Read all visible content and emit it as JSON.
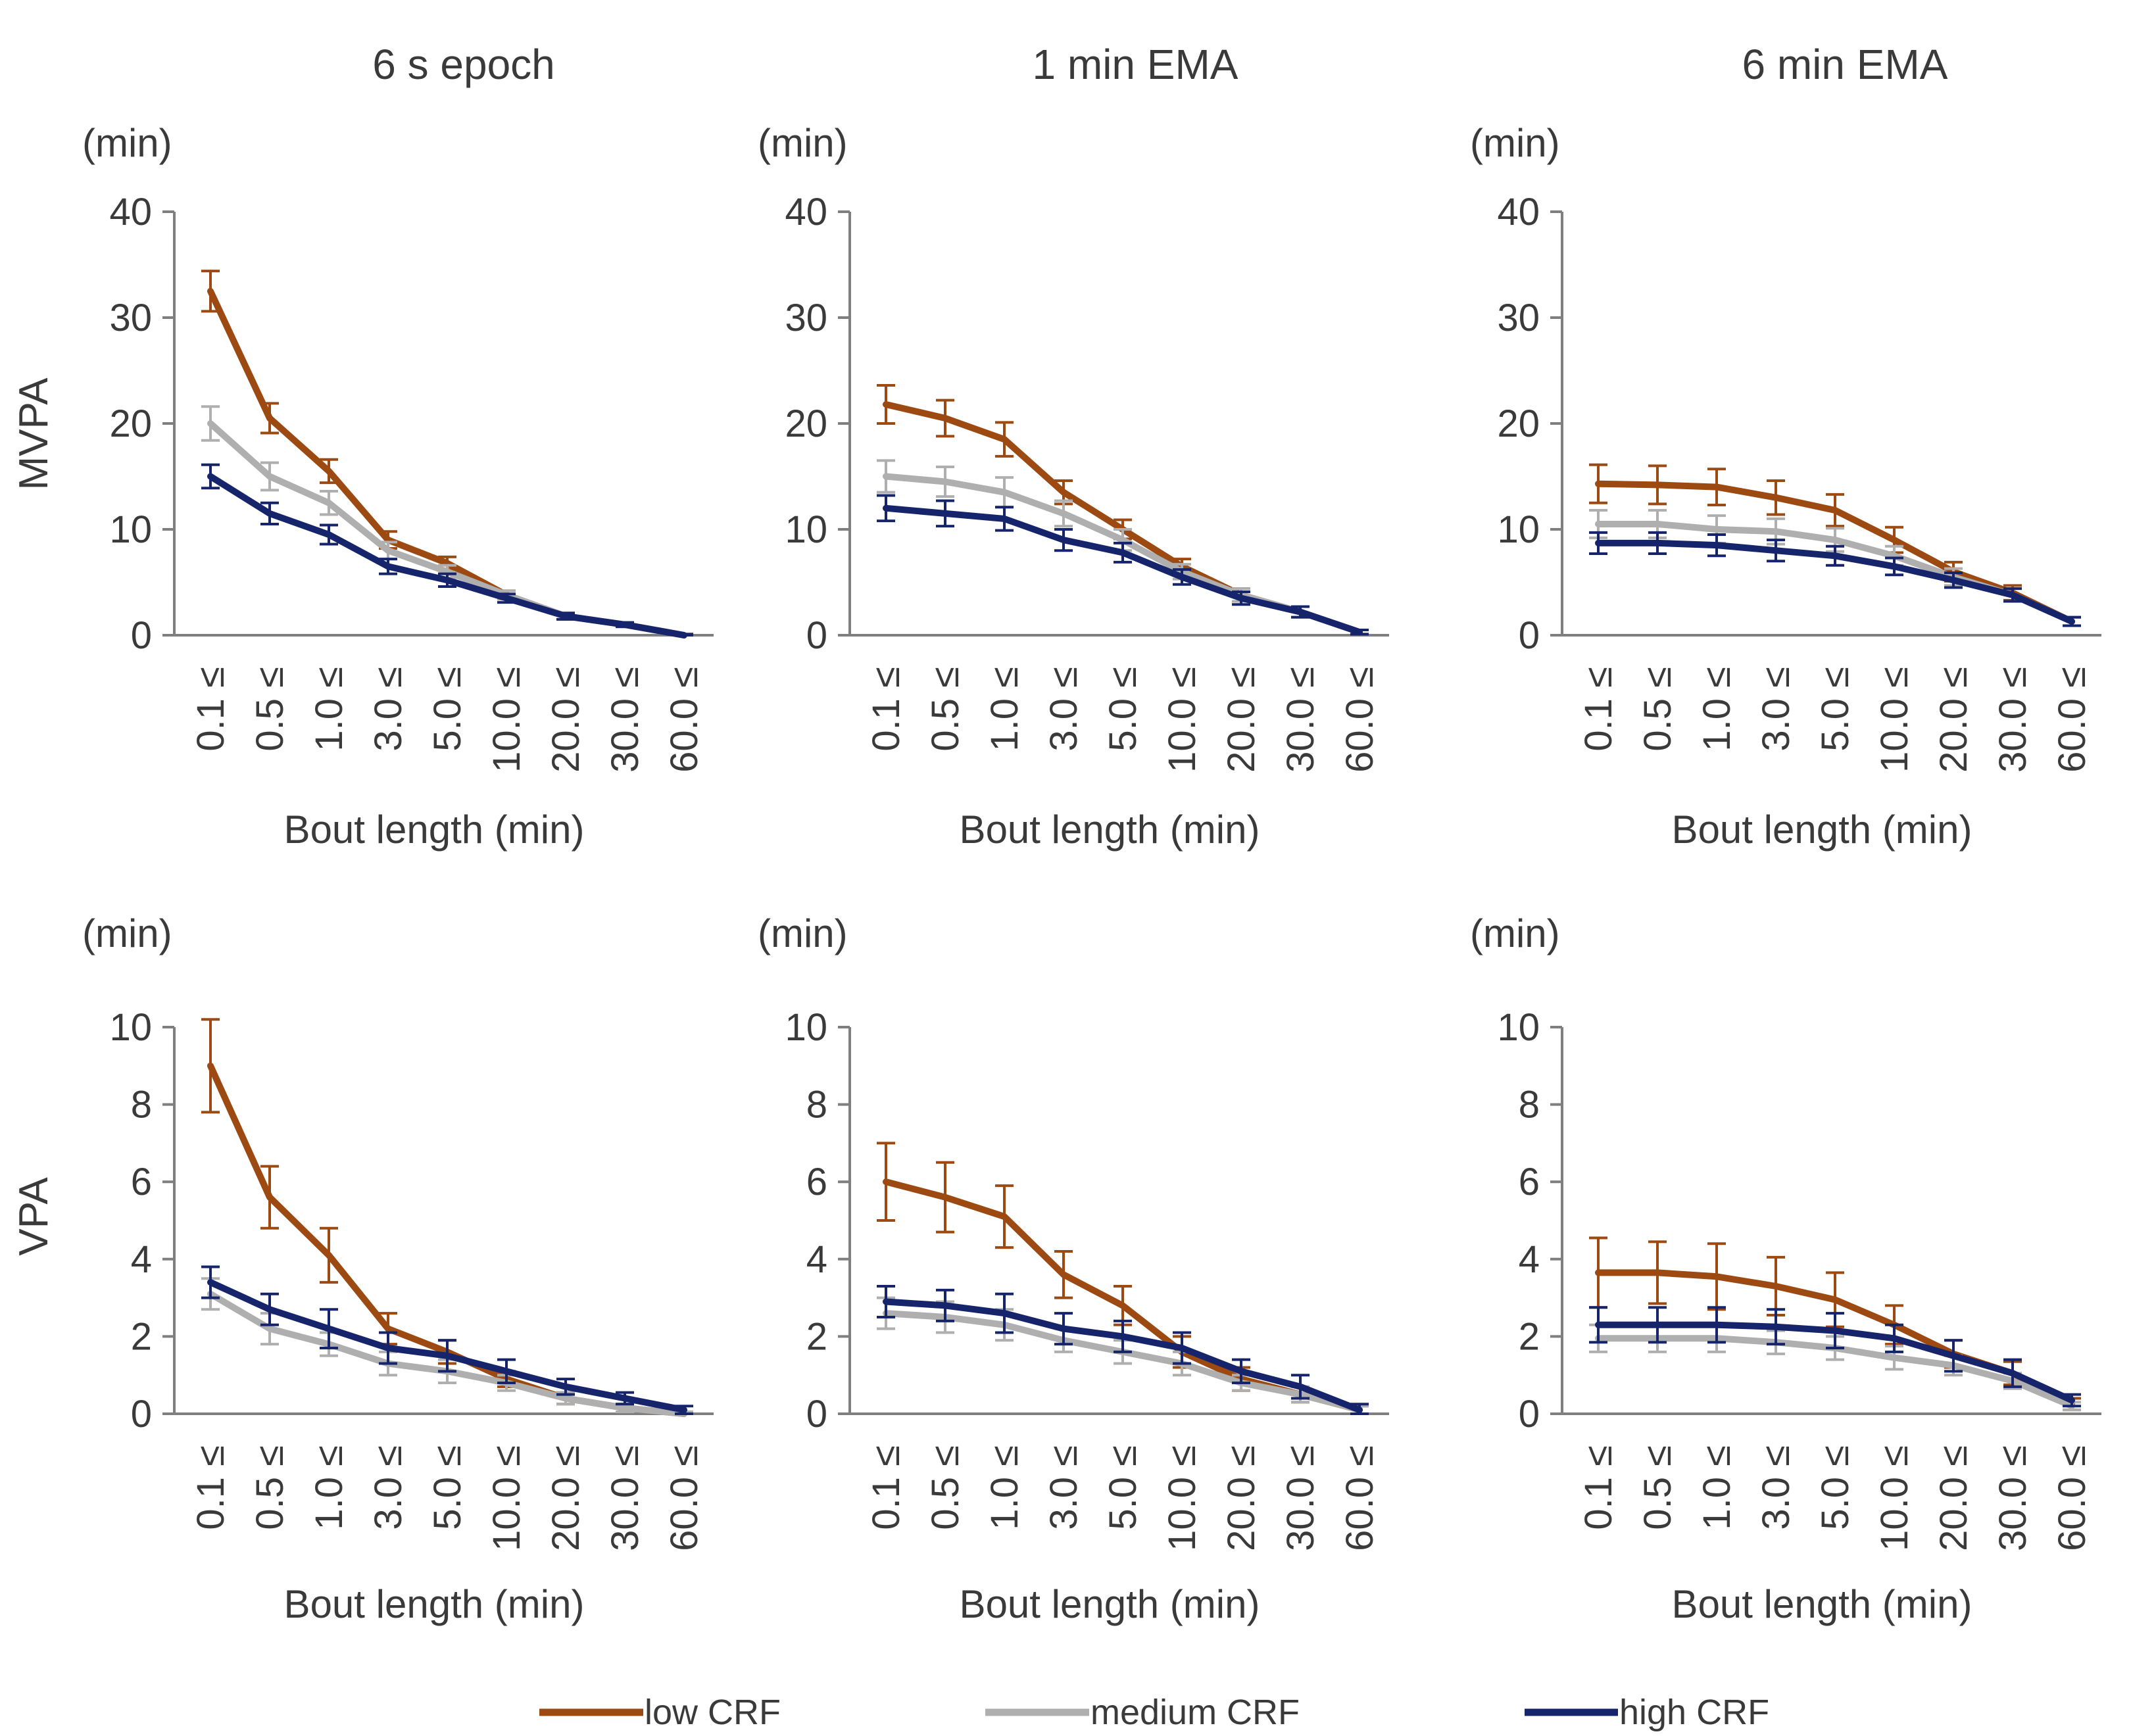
{
  "legend": [
    {
      "key": "low",
      "label": "low CRF",
      "color": "#9C4A12"
    },
    {
      "key": "medium",
      "label": "medium CRF",
      "color": "#AFAFAF"
    },
    {
      "key": "high",
      "label": "high CRF",
      "color": "#16256B"
    }
  ],
  "columns": [
    "6 s epoch",
    "1 min EMA",
    "6 min EMA"
  ],
  "rows": [
    {
      "label": "MVPA",
      "unit": "(min)",
      "ylim": [
        0,
        40
      ],
      "yticks": [
        "0",
        "10",
        "20",
        "30",
        "40"
      ]
    },
    {
      "label": "VPA",
      "unit": "(min)",
      "ylim": [
        0,
        10
      ],
      "yticks": [
        "0",
        "2",
        "4",
        "6",
        "8",
        "10"
      ]
    }
  ],
  "chart_data": [
    {
      "type": "line",
      "title": "6 s epoch",
      "ylabel": "MVPA",
      "unit": "(min)",
      "xlabel": "Bout length (min)",
      "ylim": [
        0,
        40
      ],
      "categories": [
        "0.1 ≤",
        "0.5 ≤",
        "1.0 ≤",
        "3.0 ≤",
        "5.0 ≤",
        "10.0 ≤",
        "20.0 ≤",
        "30.0 ≤",
        "60.0 ≤"
      ],
      "series": [
        {
          "name": "low CRF",
          "values": [
            32.5,
            20.5,
            15.5,
            9.0,
            6.8,
            3.8,
            1.8,
            1.0,
            0.0
          ],
          "errors": [
            1.9,
            1.4,
            1.1,
            0.8,
            0.6,
            0.4,
            0.3,
            0.2,
            0.1
          ]
        },
        {
          "name": "medium CRF",
          "values": [
            20.0,
            15.0,
            12.5,
            8.0,
            6.0,
            3.8,
            1.8,
            1.0,
            0.0
          ],
          "errors": [
            1.6,
            1.3,
            1.1,
            0.8,
            0.6,
            0.4,
            0.3,
            0.2,
            0.1
          ]
        },
        {
          "name": "high CRF",
          "values": [
            15.0,
            11.5,
            9.5,
            6.5,
            5.2,
            3.5,
            1.8,
            1.0,
            0.0
          ],
          "errors": [
            1.1,
            1.0,
            0.9,
            0.7,
            0.6,
            0.4,
            0.3,
            0.2,
            0.1
          ]
        }
      ]
    },
    {
      "type": "line",
      "title": "1 min EMA",
      "ylabel": "MVPA",
      "unit": "(min)",
      "xlabel": "Bout length (min)",
      "ylim": [
        0,
        40
      ],
      "categories": [
        "0.1 ≤",
        "0.5 ≤",
        "1.0 ≤",
        "3.0 ≤",
        "5.0 ≤",
        "10.0 ≤",
        "20.0 ≤",
        "30.0 ≤",
        "60.0 ≤"
      ],
      "series": [
        {
          "name": "low CRF",
          "values": [
            21.8,
            20.5,
            18.5,
            13.5,
            10.0,
            6.5,
            3.8,
            2.2,
            0.3
          ],
          "errors": [
            1.8,
            1.7,
            1.6,
            1.1,
            0.9,
            0.7,
            0.6,
            0.5,
            0.2
          ]
        },
        {
          "name": "medium CRF",
          "values": [
            15.0,
            14.5,
            13.5,
            11.5,
            9.0,
            6.0,
            3.8,
            2.2,
            0.3
          ],
          "errors": [
            1.5,
            1.4,
            1.4,
            1.2,
            1.0,
            0.7,
            0.6,
            0.5,
            0.2
          ]
        },
        {
          "name": "high CRF",
          "values": [
            12.0,
            11.5,
            11.0,
            9.0,
            7.8,
            5.5,
            3.5,
            2.2,
            0.3
          ],
          "errors": [
            1.2,
            1.2,
            1.1,
            1.0,
            0.9,
            0.7,
            0.6,
            0.5,
            0.2
          ]
        }
      ]
    },
    {
      "type": "line",
      "title": "6 min EMA",
      "ylabel": "MVPA",
      "unit": "(min)",
      "xlabel": "Bout length (min)",
      "ylim": [
        0,
        40
      ],
      "categories": [
        "0.1 ≤",
        "0.5 ≤",
        "1.0 ≤",
        "3.0 ≤",
        "5.0 ≤",
        "10.0 ≤",
        "20.0 ≤",
        "30.0 ≤",
        "60.0 ≤"
      ],
      "series": [
        {
          "name": "low CRF",
          "values": [
            14.3,
            14.2,
            14.0,
            13.0,
            11.8,
            9.0,
            6.0,
            4.0,
            1.3
          ],
          "errors": [
            1.8,
            1.8,
            1.7,
            1.6,
            1.5,
            1.2,
            0.9,
            0.7,
            0.4
          ]
        },
        {
          "name": "medium CRF",
          "values": [
            10.5,
            10.5,
            10.0,
            9.8,
            9.0,
            7.5,
            5.5,
            3.8,
            1.3
          ],
          "errors": [
            1.3,
            1.3,
            1.3,
            1.2,
            1.1,
            0.9,
            0.8,
            0.6,
            0.4
          ]
        },
        {
          "name": "high CRF",
          "values": [
            8.7,
            8.7,
            8.5,
            8.0,
            7.5,
            6.5,
            5.2,
            3.8,
            1.3
          ],
          "errors": [
            1.0,
            1.0,
            1.0,
            1.0,
            0.9,
            0.8,
            0.7,
            0.6,
            0.4
          ]
        }
      ]
    },
    {
      "type": "line",
      "title": "6 s epoch",
      "ylabel": "VPA",
      "unit": "(min)",
      "xlabel": "Bout length (min)",
      "ylim": [
        0,
        10
      ],
      "categories": [
        "0.1 ≤",
        "0.5 ≤",
        "1.0 ≤",
        "3.0 ≤",
        "5.0 ≤",
        "10.0 ≤",
        "20.0 ≤",
        "30.0 ≤",
        "60.0 ≤"
      ],
      "series": [
        {
          "name": "low CRF",
          "values": [
            9.0,
            5.6,
            4.1,
            2.2,
            1.6,
            0.9,
            0.4,
            0.15,
            0.0
          ],
          "errors": [
            1.2,
            0.8,
            0.7,
            0.4,
            0.3,
            0.2,
            0.15,
            0.1,
            0.05
          ]
        },
        {
          "name": "medium CRF",
          "values": [
            3.1,
            2.2,
            1.8,
            1.3,
            1.1,
            0.8,
            0.4,
            0.15,
            0.0
          ],
          "errors": [
            0.4,
            0.4,
            0.3,
            0.3,
            0.3,
            0.2,
            0.15,
            0.1,
            0.05
          ]
        },
        {
          "name": "high CRF",
          "values": [
            3.4,
            2.7,
            2.2,
            1.7,
            1.5,
            1.1,
            0.7,
            0.4,
            0.1
          ],
          "errors": [
            0.4,
            0.4,
            0.5,
            0.4,
            0.4,
            0.3,
            0.2,
            0.15,
            0.1
          ]
        }
      ]
    },
    {
      "type": "line",
      "title": "1 min EMA",
      "ylabel": "VPA",
      "unit": "(min)",
      "xlabel": "Bout length (min)",
      "ylim": [
        0,
        10
      ],
      "categories": [
        "0.1 ≤",
        "0.5 ≤",
        "1.0 ≤",
        "3.0 ≤",
        "5.0 ≤",
        "10.0 ≤",
        "20.0 ≤",
        "30.0 ≤",
        "60.0 ≤"
      ],
      "series": [
        {
          "name": "low CRF",
          "values": [
            6.0,
            5.6,
            5.1,
            3.6,
            2.8,
            1.6,
            0.9,
            0.5,
            0.1
          ],
          "errors": [
            1.0,
            0.9,
            0.8,
            0.6,
            0.5,
            0.4,
            0.3,
            0.2,
            0.1
          ]
        },
        {
          "name": "medium CRF",
          "values": [
            2.6,
            2.5,
            2.3,
            1.9,
            1.6,
            1.3,
            0.8,
            0.5,
            0.1
          ],
          "errors": [
            0.4,
            0.4,
            0.4,
            0.3,
            0.3,
            0.3,
            0.2,
            0.2,
            0.1
          ]
        },
        {
          "name": "high CRF",
          "values": [
            2.9,
            2.8,
            2.6,
            2.2,
            2.0,
            1.7,
            1.1,
            0.7,
            0.1
          ],
          "errors": [
            0.4,
            0.4,
            0.5,
            0.4,
            0.4,
            0.4,
            0.3,
            0.3,
            0.15
          ]
        }
      ]
    },
    {
      "type": "line",
      "title": "6 min EMA",
      "ylabel": "VPA",
      "unit": "(min)",
      "xlabel": "Bout length (min)",
      "ylim": [
        0,
        10
      ],
      "categories": [
        "0.1 ≤",
        "0.5 ≤",
        "1.0 ≤",
        "3.0 ≤",
        "5.0 ≤",
        "10.0 ≤",
        "20.0 ≤",
        "30.0 ≤",
        "60.0 ≤"
      ],
      "series": [
        {
          "name": "low CRF",
          "values": [
            3.65,
            3.65,
            3.55,
            3.3,
            2.95,
            2.3,
            1.55,
            1.05,
            0.25
          ],
          "errors": [
            0.9,
            0.8,
            0.85,
            0.75,
            0.7,
            0.5,
            0.35,
            0.3,
            0.15
          ]
        },
        {
          "name": "medium CRF",
          "values": [
            1.95,
            1.95,
            1.95,
            1.85,
            1.7,
            1.45,
            1.25,
            0.85,
            0.2
          ],
          "errors": [
            0.35,
            0.35,
            0.35,
            0.3,
            0.3,
            0.3,
            0.25,
            0.2,
            0.1
          ]
        },
        {
          "name": "high CRF",
          "values": [
            2.3,
            2.3,
            2.3,
            2.25,
            2.15,
            1.95,
            1.5,
            1.05,
            0.35
          ],
          "errors": [
            0.45,
            0.45,
            0.45,
            0.45,
            0.45,
            0.35,
            0.4,
            0.35,
            0.15
          ]
        }
      ]
    }
  ]
}
